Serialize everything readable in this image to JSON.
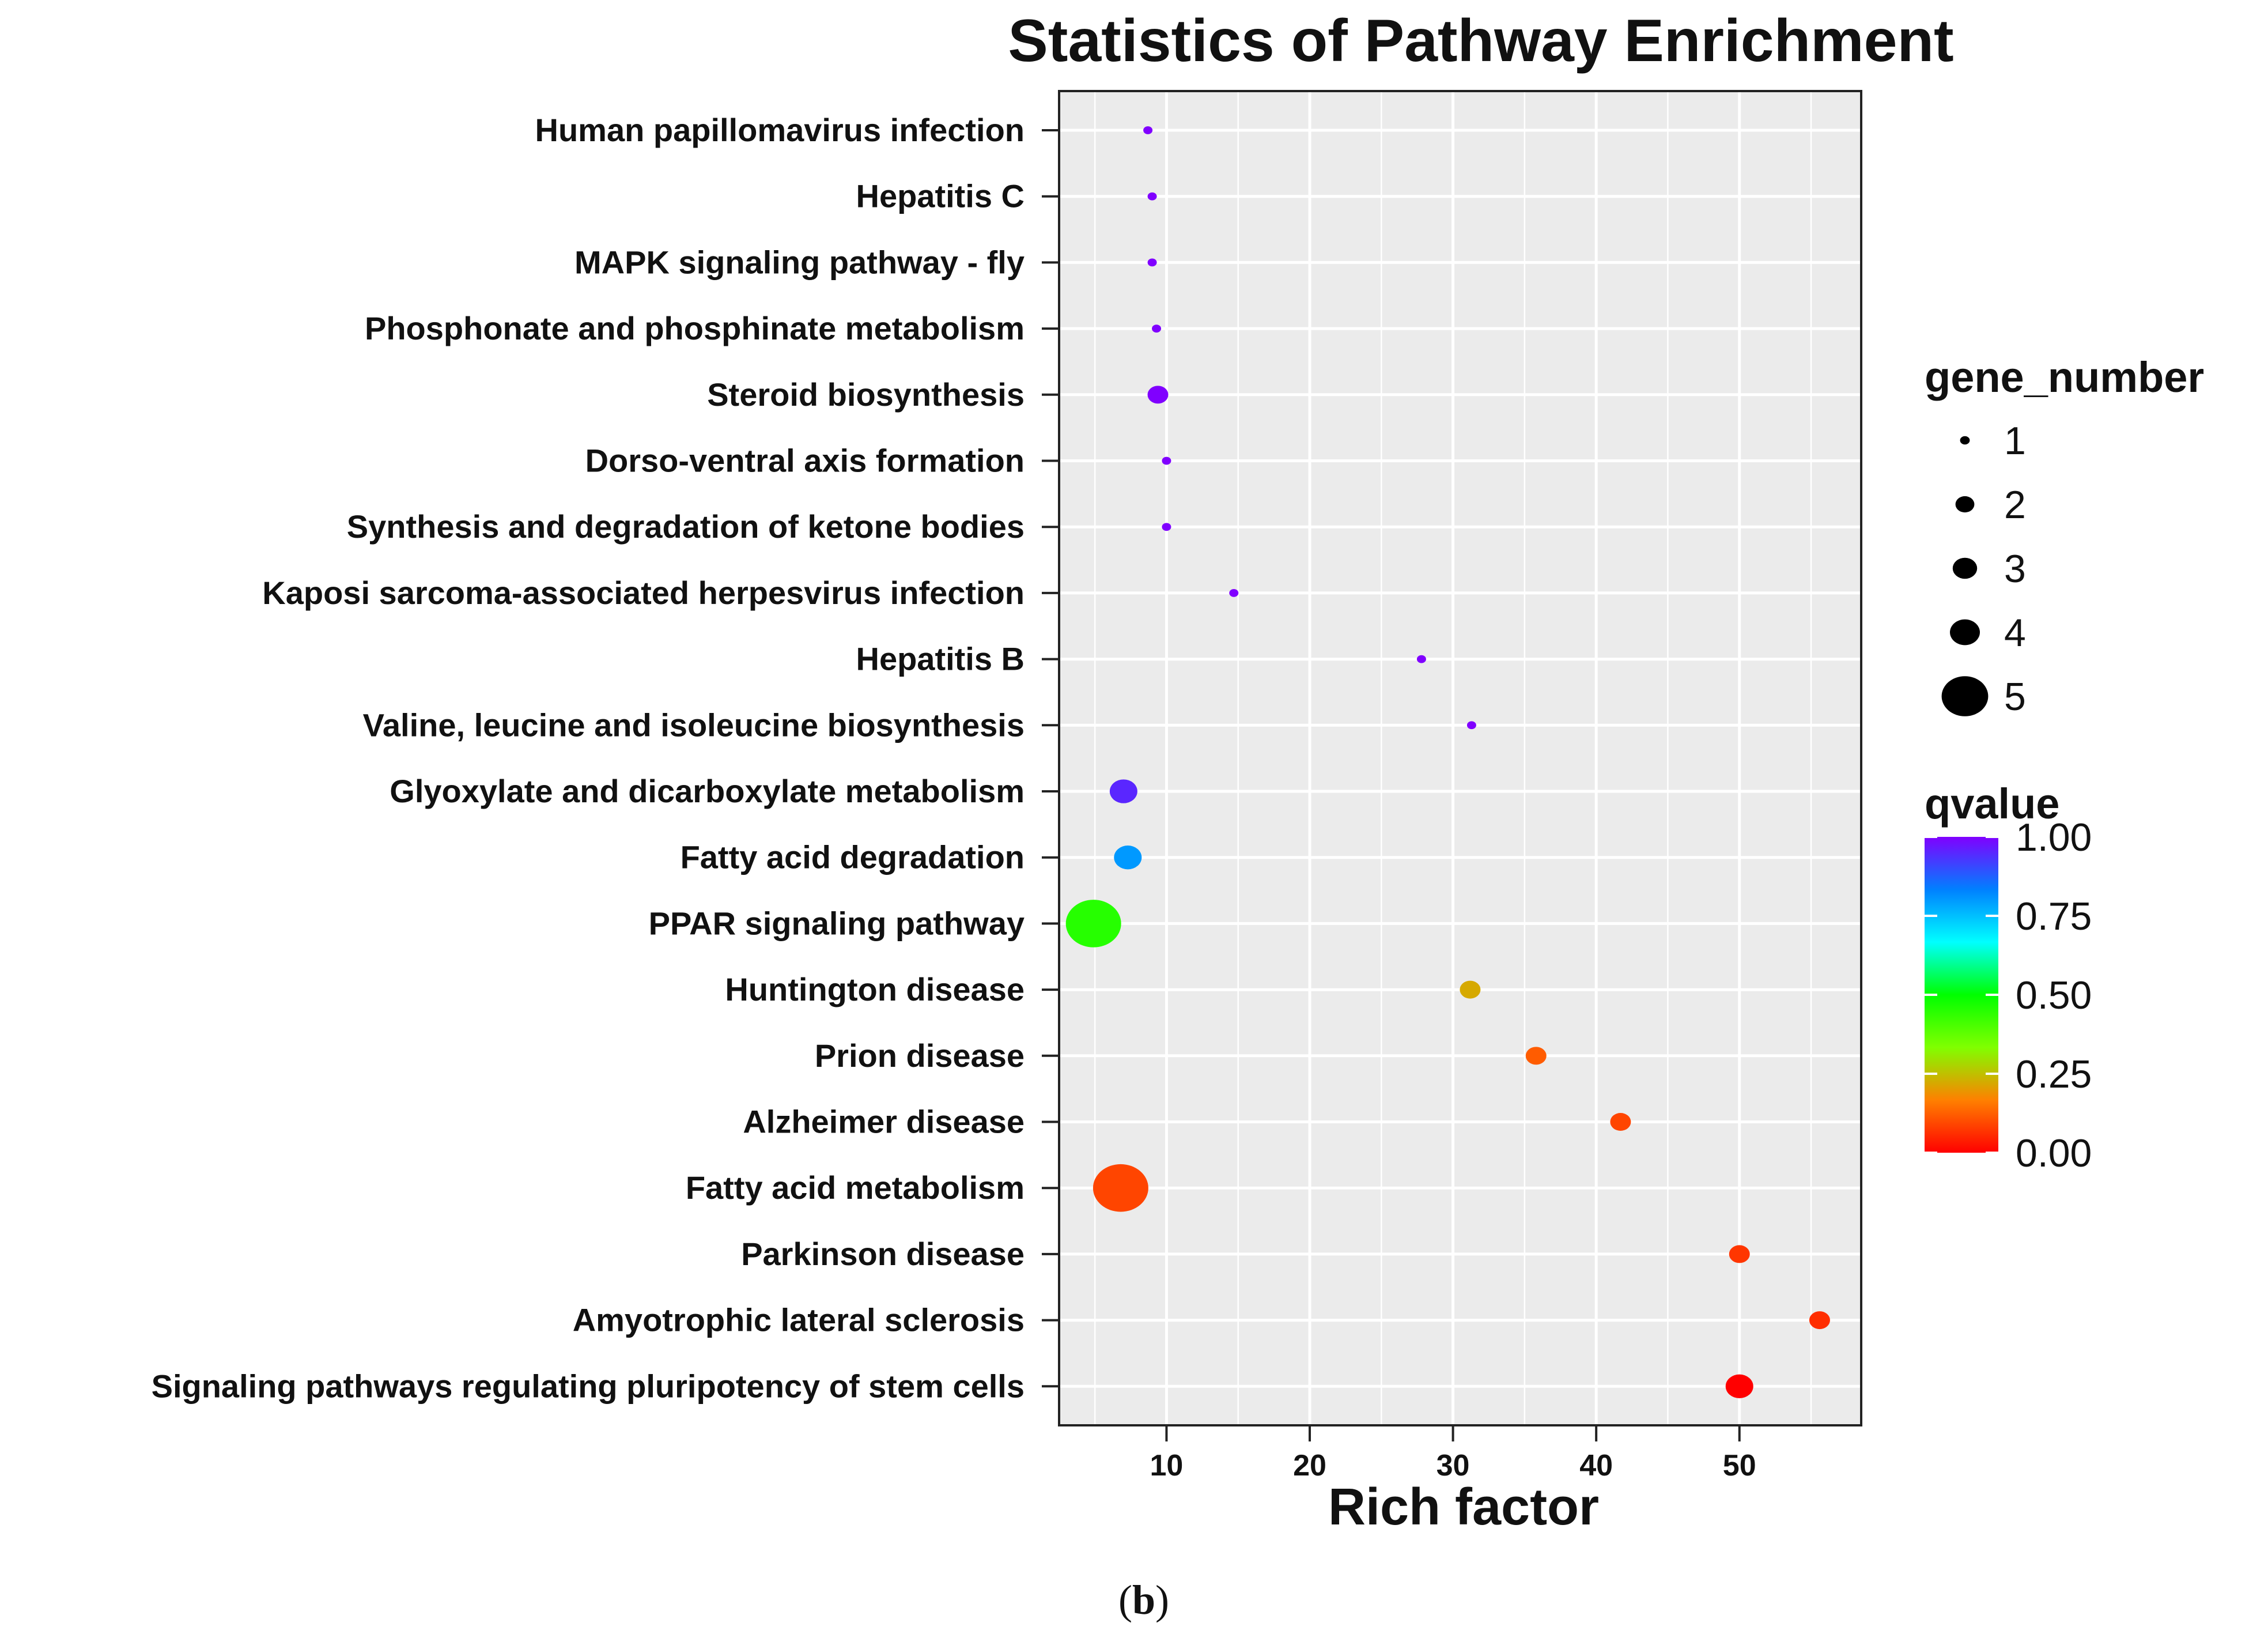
{
  "chart_data": {
    "type": "scatter",
    "title": "Statistics of Pathway Enrichment",
    "xlabel": "Rich factor",
    "ylabel": "",
    "xlim": [
      2.5,
      58.5
    ],
    "x_ticks": [
      10,
      20,
      30,
      40,
      50
    ],
    "grid": true,
    "categories": [
      "Human papillomavirus infection",
      "Hepatitis C",
      "MAPK signaling pathway - fly",
      "Phosphonate and phosphinate metabolism",
      "Steroid biosynthesis",
      "Dorso-ventral axis formation",
      "Synthesis and degradation of ketone bodies",
      "Kaposi sarcoma-associated herpesvirus infection",
      "Hepatitis B",
      "Valine, leucine and isoleucine biosynthesis",
      "Glyoxylate and dicarboxylate metabolism",
      "Fatty acid degradation",
      "PPAR signaling pathway",
      "Huntington disease",
      "Prion disease",
      "Alzheimer disease",
      "Fatty acid metabolism",
      "Parkinson disease",
      "Amyotrophic lateral sclerosis",
      "Signaling pathways regulating pluripotency of stem cells"
    ],
    "points": [
      {
        "pathway": "Human papillomavirus infection",
        "rich_factor": 8.7,
        "gene_number": 1,
        "qvalue": 1.0
      },
      {
        "pathway": "Hepatitis C",
        "rich_factor": 9.0,
        "gene_number": 1,
        "qvalue": 1.0
      },
      {
        "pathway": "MAPK signaling pathway - fly",
        "rich_factor": 9.0,
        "gene_number": 1,
        "qvalue": 1.0
      },
      {
        "pathway": "Phosphonate and phosphinate metabolism",
        "rich_factor": 9.3,
        "gene_number": 1,
        "qvalue": 1.0
      },
      {
        "pathway": "Steroid biosynthesis",
        "rich_factor": 9.4,
        "gene_number": 2,
        "qvalue": 1.0
      },
      {
        "pathway": "Dorso-ventral axis formation",
        "rich_factor": 10.0,
        "gene_number": 1,
        "qvalue": 1.0
      },
      {
        "pathway": "Synthesis and degradation of ketone bodies",
        "rich_factor": 10.0,
        "gene_number": 1,
        "qvalue": 1.0
      },
      {
        "pathway": "Kaposi sarcoma-associated herpesvirus infection",
        "rich_factor": 14.7,
        "gene_number": 1,
        "qvalue": 1.0
      },
      {
        "pathway": "Hepatitis B",
        "rich_factor": 27.8,
        "gene_number": 1,
        "qvalue": 1.0
      },
      {
        "pathway": "Valine, leucine and isoleucine biosynthesis",
        "rich_factor": 31.3,
        "gene_number": 1,
        "qvalue": 1.0
      },
      {
        "pathway": "Glyoxylate and dicarboxylate metabolism",
        "rich_factor": 7.0,
        "gene_number": 3,
        "qvalue": 0.95
      },
      {
        "pathway": "Fatty acid degradation",
        "rich_factor": 7.3,
        "gene_number": 3,
        "qvalue": 0.8
      },
      {
        "pathway": "PPAR signaling pathway",
        "rich_factor": 4.9,
        "gene_number": 5,
        "qvalue": 0.45
      },
      {
        "pathway": "Huntington disease",
        "rich_factor": 31.2,
        "gene_number": 2,
        "qvalue": 0.22
      },
      {
        "pathway": "Prion disease",
        "rich_factor": 35.8,
        "gene_number": 2,
        "qvalue": 0.12
      },
      {
        "pathway": "Alzheimer disease",
        "rich_factor": 41.7,
        "gene_number": 2,
        "qvalue": 0.09
      },
      {
        "pathway": "Fatty acid metabolism",
        "rich_factor": 6.8,
        "gene_number": 5,
        "qvalue": 0.09
      },
      {
        "pathway": "Parkinson disease",
        "rich_factor": 50.0,
        "gene_number": 2,
        "qvalue": 0.07
      },
      {
        "pathway": "Amyotrophic lateral sclerosis",
        "rich_factor": 55.6,
        "gene_number": 2,
        "qvalue": 0.06
      },
      {
        "pathway": "Signaling pathways regulating pluripotency of stem cells",
        "rich_factor": 50.0,
        "gene_number": 3,
        "qvalue": 0.0
      }
    ],
    "size_legend": {
      "title": "gene_number",
      "values": [
        1,
        2,
        3,
        4,
        5
      ],
      "labels": [
        "1",
        "2",
        "3",
        "4",
        "5"
      ]
    },
    "color_legend": {
      "title": "qvalue",
      "range": [
        0.0,
        1.0
      ],
      "tick_values": [
        1.0,
        0.75,
        0.5,
        0.25,
        0.0
      ],
      "tick_labels": [
        "1.00",
        "0.75",
        "0.50",
        "0.25",
        "0.00"
      ],
      "colors": [
        "#ff0000",
        "#ff8000",
        "#80ff00",
        "#00ff00",
        "#00ffff",
        "#0080ff",
        "#8000ff"
      ]
    },
    "panel_background": "#ebebeb",
    "grid_color": "#ffffff",
    "legend_position": "right"
  },
  "caption": {
    "open": "(",
    "letter": "b",
    "close": ")"
  }
}
